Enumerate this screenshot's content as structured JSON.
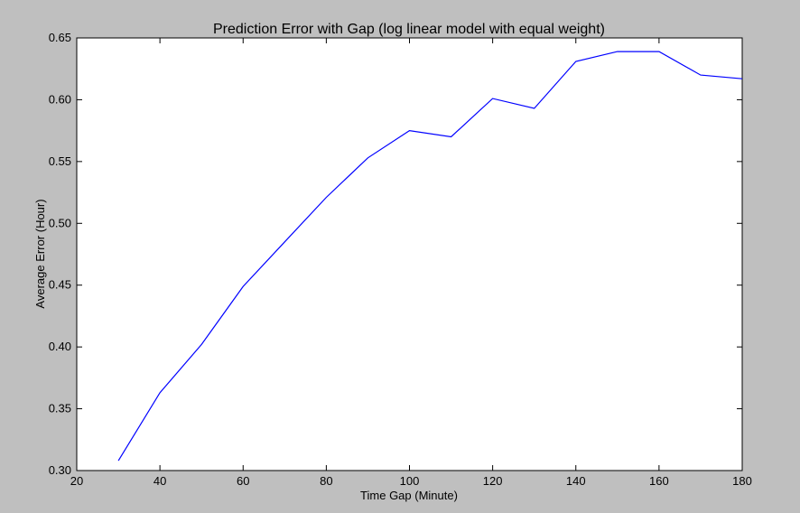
{
  "chart_data": {
    "type": "line",
    "title": "Prediction Error with Gap (log linear model with equal weight)",
    "xlabel": "Time Gap (Minute)",
    "ylabel": "Average Error (Hour)",
    "xlim": [
      20,
      180
    ],
    "ylim": [
      0.3,
      0.65
    ],
    "xticks": [
      "20",
      "40",
      "60",
      "80",
      "100",
      "120",
      "140",
      "160",
      "180"
    ],
    "yticks": [
      "0.30",
      "0.35",
      "0.40",
      "0.45",
      "0.50",
      "0.55",
      "0.60",
      "0.65"
    ],
    "grid": false,
    "series": [
      {
        "color": "#0000ff",
        "x": [
          30,
          40,
          50,
          60,
          70,
          80,
          90,
          100,
          110,
          120,
          130,
          140,
          150,
          160,
          170,
          180
        ],
        "y": [
          0.308,
          0.363,
          0.402,
          0.449,
          0.485,
          0.521,
          0.553,
          0.575,
          0.57,
          0.601,
          0.593,
          0.631,
          0.639,
          0.639,
          0.62,
          0.617
        ]
      }
    ]
  }
}
